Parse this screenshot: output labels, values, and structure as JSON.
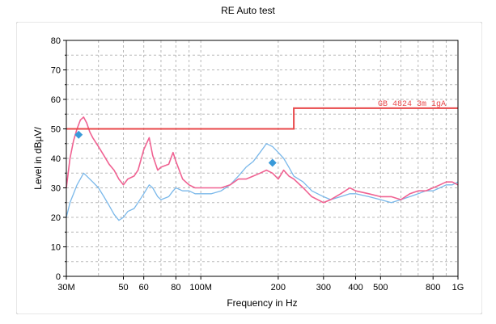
{
  "chart_data": {
    "type": "line",
    "title": "RE Auto test",
    "xlabel": "Frequency in Hz",
    "ylabel": "Level in dBµV/",
    "x_scale": "log",
    "xlim": [
      30000000,
      1000000000
    ],
    "ylim": [
      0,
      80
    ],
    "grid": true,
    "y_ticks": [
      "0",
      "10",
      "20",
      "30",
      "40",
      "50",
      "60",
      "70",
      "80"
    ],
    "x_ticks": [
      {
        "value": 30000000,
        "label": "30M"
      },
      {
        "value": 50000000,
        "label": "50"
      },
      {
        "value": 60000000,
        "label": "60"
      },
      {
        "value": 80000000,
        "label": "80"
      },
      {
        "value": 100000000,
        "label": "100M"
      },
      {
        "value": 200000000,
        "label": "200"
      },
      {
        "value": 300000000,
        "label": "300"
      },
      {
        "value": 400000000,
        "label": "400"
      },
      {
        "value": 500000000,
        "label": "500"
      },
      {
        "value": 800000000,
        "label": "800"
      },
      {
        "value": 1000000000,
        "label": "1G"
      }
    ],
    "limit_label": "GB 4824 3m 1gA",
    "colors": {
      "pink_trace": "#f06292",
      "blue_trace": "#7ab8ea",
      "limit": "#e8484a",
      "marker": "#3a9ad9",
      "grid": "#b8b8b8"
    },
    "series": [
      {
        "key": "pink",
        "x": [
          30000000,
          31000000,
          32000000,
          33000000,
          34000000,
          35000000,
          36000000,
          37000000,
          38000000,
          40000000,
          42000000,
          44000000,
          46000000,
          48000000,
          50000000,
          52000000,
          55000000,
          57000000,
          60000000,
          63000000,
          65000000,
          68000000,
          70000000,
          75000000,
          78000000,
          80000000,
          85000000,
          90000000,
          95000000,
          100000000,
          110000000,
          120000000,
          130000000,
          140000000,
          150000000,
          160000000,
          170000000,
          180000000,
          190000000,
          200000000,
          210000000,
          220000000,
          230000000,
          250000000,
          270000000,
          300000000,
          320000000,
          350000000,
          380000000,
          400000000,
          450000000,
          500000000,
          550000000,
          600000000,
          650000000,
          700000000,
          750000000,
          800000000,
          850000000,
          900000000,
          950000000,
          1000000000
        ],
        "values": [
          30,
          40,
          46,
          50,
          53,
          54,
          52,
          49,
          47,
          44,
          41,
          38,
          36,
          33,
          31,
          33,
          34,
          36,
          43,
          47,
          41,
          36,
          37,
          38,
          42,
          39,
          33,
          31,
          30,
          30,
          30,
          30,
          31,
          33,
          33,
          34,
          35,
          36,
          35,
          33,
          36,
          34,
          33,
          30,
          27,
          25,
          26,
          28,
          30,
          29,
          28,
          27,
          27,
          26,
          28,
          29,
          29,
          30,
          31,
          32,
          32,
          31
        ]
      },
      {
        "key": "blue",
        "x": [
          30000000,
          31000000,
          32000000,
          33000000,
          34000000,
          35000000,
          36000000,
          37000000,
          38000000,
          40000000,
          42000000,
          44000000,
          46000000,
          48000000,
          50000000,
          52000000,
          55000000,
          57000000,
          60000000,
          63000000,
          65000000,
          68000000,
          70000000,
          75000000,
          78000000,
          80000000,
          85000000,
          90000000,
          95000000,
          100000000,
          110000000,
          120000000,
          130000000,
          140000000,
          150000000,
          160000000,
          170000000,
          180000000,
          190000000,
          200000000,
          210000000,
          220000000,
          230000000,
          250000000,
          270000000,
          300000000,
          320000000,
          350000000,
          380000000,
          400000000,
          450000000,
          500000000,
          550000000,
          600000000,
          650000000,
          700000000,
          750000000,
          800000000,
          850000000,
          900000000,
          950000000,
          1000000000
        ],
        "values": [
          20,
          25,
          28,
          31,
          33,
          35,
          34,
          33,
          32,
          30,
          27,
          24,
          21,
          19,
          20,
          22,
          23,
          25,
          28,
          31,
          30,
          27,
          26,
          27,
          29,
          30,
          29,
          29,
          28,
          28,
          28,
          29,
          31,
          34,
          37,
          39,
          42,
          45,
          44,
          42,
          40,
          37,
          34,
          32,
          29,
          27,
          26,
          27,
          28,
          28,
          27,
          26,
          25,
          26,
          27,
          28,
          29,
          29,
          30,
          31,
          31,
          32
        ]
      }
    ],
    "limit_line": {
      "x": [
        30000000,
        230000000,
        230000000,
        1000000000
      ],
      "values": [
        50,
        50,
        57,
        57
      ]
    },
    "markers": [
      {
        "x": 33500000,
        "value": 48
      },
      {
        "x": 190000000,
        "value": 38.5
      }
    ]
  }
}
